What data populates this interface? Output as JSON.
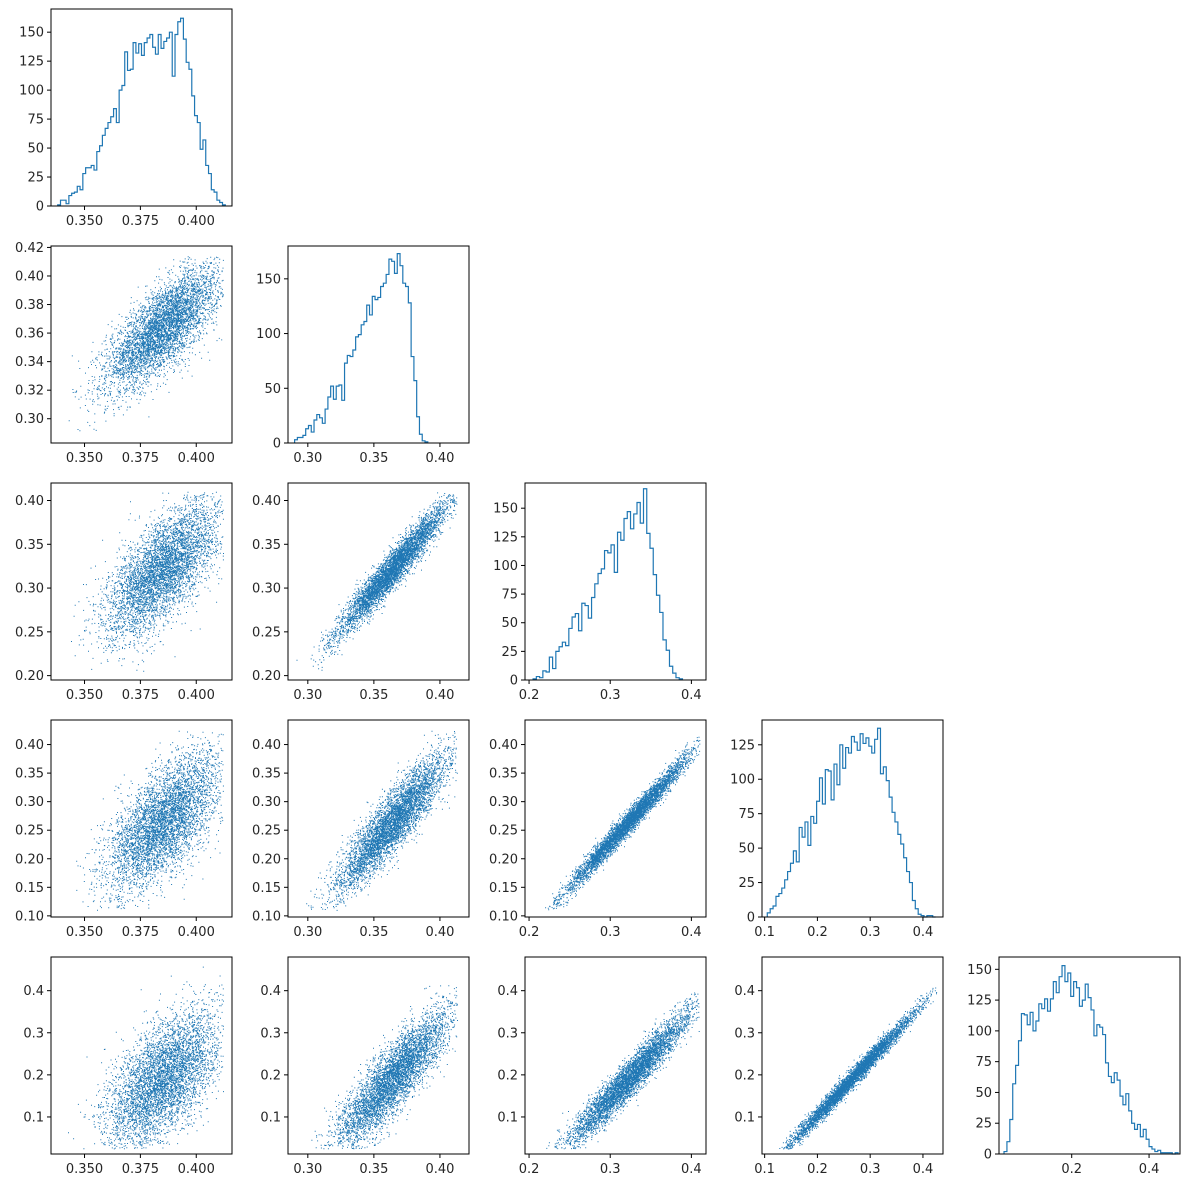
{
  "style": {
    "series_color": "#1f77b4",
    "axis_color": "#000000"
  },
  "chart_data": [
    {
      "type": "histogram",
      "panel": "hist-1",
      "row": 0,
      "col": 0,
      "xlim": [
        0.335,
        0.416
      ],
      "ylim": [
        0,
        170
      ],
      "xticks": [
        0.35,
        0.375,
        0.4
      ],
      "xtick_labels": [
        "0.350",
        "0.375",
        "0.400"
      ],
      "yticks": [
        0,
        25,
        50,
        75,
        100,
        125,
        150
      ],
      "ytick_labels": [
        "0",
        "25",
        "50",
        "75",
        "100",
        "125",
        "150"
      ],
      "bin_start": 0.338,
      "bin_width": 0.00125,
      "counts": [
        1,
        5,
        5,
        2,
        9,
        11,
        12,
        17,
        14,
        28,
        33,
        33,
        35,
        31,
        47,
        52,
        61,
        67,
        72,
        77,
        84,
        72,
        100,
        104,
        133,
        117,
        118,
        141,
        132,
        140,
        130,
        141,
        145,
        148,
        137,
        131,
        148,
        136,
        142,
        145,
        150,
        112,
        148,
        159,
        162,
        144,
        124,
        118,
        95,
        78,
        72,
        49,
        57,
        35,
        28,
        14,
        12,
        5,
        3,
        1
      ],
      "xlabel": "",
      "ylabel": ""
    },
    {
      "type": "scatter",
      "panel": "scatter-2-1",
      "row": 1,
      "col": 0,
      "xlim": [
        0.335,
        0.416
      ],
      "ylim": [
        0.283,
        0.421
      ],
      "xticks": [
        0.35,
        0.375,
        0.4
      ],
      "xtick_labels": [
        "0.350",
        "0.375",
        "0.400"
      ],
      "yticks": [
        0.3,
        0.32,
        0.34,
        0.36,
        0.38,
        0.4,
        0.42
      ],
      "ytick_labels": [
        "0.30",
        "0.32",
        "0.34",
        "0.36",
        "0.38",
        "0.40",
        "0.42"
      ],
      "x_mean": 0.385,
      "x_sd": 0.0126,
      "x_min": 0.338,
      "x_max": 0.412,
      "y_mean": 0.364,
      "y_sd": 0.021,
      "y_min": 0.288,
      "y_max": 0.414,
      "corr": 0.74,
      "n": 5000,
      "xlabel": "",
      "ylabel": ""
    },
    {
      "type": "histogram",
      "panel": "hist-2",
      "row": 1,
      "col": 1,
      "xlim": [
        0.285,
        0.422
      ],
      "ylim": [
        0,
        180
      ],
      "xticks": [
        0.3,
        0.35,
        0.4
      ],
      "xtick_labels": [
        "0.30",
        "0.35",
        "0.40"
      ],
      "yticks": [
        0,
        50,
        100,
        150
      ],
      "ytick_labels": [
        "0",
        "50",
        "100",
        "150"
      ],
      "bin_start": 0.29,
      "bin_width": 0.0021,
      "counts": [
        3,
        5,
        5,
        7,
        13,
        16,
        10,
        21,
        26,
        23,
        18,
        31,
        42,
        52,
        40,
        52,
        53,
        39,
        73,
        80,
        79,
        85,
        97,
        99,
        108,
        111,
        126,
        117,
        134,
        131,
        133,
        143,
        146,
        154,
        168,
        166,
        155,
        173,
        162,
        146,
        143,
        128,
        79,
        57,
        24,
        8,
        2,
        1
      ],
      "xlabel": "",
      "ylabel": ""
    },
    {
      "type": "scatter",
      "panel": "scatter-3-1",
      "row": 2,
      "col": 0,
      "xlim": [
        0.335,
        0.416
      ],
      "ylim": [
        0.195,
        0.42
      ],
      "xticks": [
        0.35,
        0.375,
        0.4
      ],
      "xtick_labels": [
        "0.350",
        "0.375",
        "0.400"
      ],
      "yticks": [
        0.2,
        0.25,
        0.3,
        0.35,
        0.4
      ],
      "ytick_labels": [
        "0.20",
        "0.25",
        "0.30",
        "0.35",
        "0.40"
      ],
      "x_mean": 0.385,
      "x_sd": 0.0126,
      "x_min": 0.338,
      "x_max": 0.412,
      "y_mean": 0.322,
      "y_sd": 0.038,
      "y_min": 0.205,
      "y_max": 0.41,
      "corr": 0.68,
      "n": 5000,
      "xlabel": "",
      "ylabel": ""
    },
    {
      "type": "scatter",
      "panel": "scatter-3-2",
      "row": 2,
      "col": 1,
      "xlim": [
        0.285,
        0.422
      ],
      "ylim": [
        0.195,
        0.42
      ],
      "xticks": [
        0.3,
        0.35,
        0.4
      ],
      "xtick_labels": [
        "0.30",
        "0.35",
        "0.40"
      ],
      "yticks": [
        0.2,
        0.25,
        0.3,
        0.35,
        0.4
      ],
      "ytick_labels": [
        "0.20",
        "0.25",
        "0.30",
        "0.35",
        "0.40"
      ],
      "x_mean": 0.364,
      "x_sd": 0.021,
      "x_min": 0.29,
      "x_max": 0.413,
      "y_mean": 0.322,
      "y_sd": 0.038,
      "y_min": 0.205,
      "y_max": 0.41,
      "corr": 0.96,
      "n": 5000,
      "xlabel": "",
      "ylabel": ""
    },
    {
      "type": "histogram",
      "panel": "hist-3",
      "row": 2,
      "col": 2,
      "xlim": [
        0.195,
        0.418
      ],
      "ylim": [
        0,
        172
      ],
      "xticks": [
        0.2,
        0.3,
        0.4
      ],
      "xtick_labels": [
        "0.2",
        "0.3",
        "0.4"
      ],
      "yticks": [
        0,
        25,
        50,
        75,
        100,
        125,
        150
      ],
      "ytick_labels": [
        "0",
        "25",
        "50",
        "75",
        "100",
        "125",
        "150"
      ],
      "bin_start": 0.205,
      "bin_width": 0.004,
      "counts": [
        1,
        3,
        2,
        8,
        7,
        20,
        10,
        25,
        29,
        33,
        30,
        45,
        55,
        58,
        43,
        67,
        65,
        54,
        72,
        84,
        93,
        97,
        113,
        111,
        118,
        94,
        129,
        122,
        141,
        147,
        132,
        145,
        155,
        137,
        167,
        128,
        115,
        92,
        74,
        59,
        35,
        26,
        12,
        6,
        2,
        1
      ],
      "xlabel": "",
      "ylabel": ""
    },
    {
      "type": "scatter",
      "panel": "scatter-4-1",
      "row": 3,
      "col": 0,
      "xlim": [
        0.335,
        0.416
      ],
      "ylim": [
        0.098,
        0.443
      ],
      "xticks": [
        0.35,
        0.375,
        0.4
      ],
      "xtick_labels": [
        "0.350",
        "0.375",
        "0.400"
      ],
      "yticks": [
        0.1,
        0.15,
        0.2,
        0.25,
        0.3,
        0.35,
        0.4
      ],
      "ytick_labels": [
        "0.10",
        "0.15",
        "0.20",
        "0.25",
        "0.30",
        "0.35",
        "0.40"
      ],
      "x_mean": 0.385,
      "x_sd": 0.0126,
      "x_min": 0.338,
      "x_max": 0.412,
      "y_mean": 0.264,
      "y_sd": 0.06,
      "y_min": 0.11,
      "y_max": 0.425,
      "corr": 0.64,
      "n": 5000,
      "xlabel": "",
      "ylabel": ""
    },
    {
      "type": "scatter",
      "panel": "scatter-4-2",
      "row": 3,
      "col": 1,
      "xlim": [
        0.285,
        0.422
      ],
      "ylim": [
        0.098,
        0.443
      ],
      "xticks": [
        0.3,
        0.35,
        0.4
      ],
      "xtick_labels": [
        "0.30",
        "0.35",
        "0.40"
      ],
      "yticks": [
        0.1,
        0.15,
        0.2,
        0.25,
        0.3,
        0.35,
        0.4
      ],
      "ytick_labels": [
        "0.10",
        "0.15",
        "0.20",
        "0.25",
        "0.30",
        "0.35",
        "0.40"
      ],
      "x_mean": 0.364,
      "x_sd": 0.021,
      "x_min": 0.29,
      "x_max": 0.413,
      "y_mean": 0.264,
      "y_sd": 0.06,
      "y_min": 0.11,
      "y_max": 0.425,
      "corr": 0.9,
      "n": 5000,
      "xlabel": "",
      "ylabel": ""
    },
    {
      "type": "scatter",
      "panel": "scatter-4-3",
      "row": 3,
      "col": 2,
      "xlim": [
        0.195,
        0.418
      ],
      "ylim": [
        0.098,
        0.443
      ],
      "xticks": [
        0.2,
        0.3,
        0.4
      ],
      "xtick_labels": [
        "0.2",
        "0.3",
        "0.4"
      ],
      "yticks": [
        0.1,
        0.15,
        0.2,
        0.25,
        0.3,
        0.35,
        0.4
      ],
      "ytick_labels": [
        "0.10",
        "0.15",
        "0.20",
        "0.25",
        "0.30",
        "0.35",
        "0.40"
      ],
      "x_mean": 0.322,
      "x_sd": 0.038,
      "x_min": 0.205,
      "x_max": 0.41,
      "y_mean": 0.264,
      "y_sd": 0.06,
      "y_min": 0.11,
      "y_max": 0.425,
      "corr": 0.985,
      "n": 5000,
      "xlabel": "",
      "ylabel": ""
    },
    {
      "type": "histogram",
      "panel": "hist-4",
      "row": 3,
      "col": 3,
      "xlim": [
        0.095,
        0.438
      ],
      "ylim": [
        0,
        143
      ],
      "xticks": [
        0.1,
        0.2,
        0.3,
        0.4
      ],
      "xtick_labels": [
        "0.1",
        "0.2",
        "0.3",
        "0.4"
      ],
      "yticks": [
        0,
        25,
        50,
        75,
        100,
        125
      ],
      "ytick_labels": [
        "0",
        "25",
        "50",
        "75",
        "100",
        "125"
      ],
      "bin_start": 0.105,
      "bin_width": 0.0055,
      "counts": [
        3,
        6,
        8,
        15,
        17,
        21,
        27,
        33,
        39,
        48,
        40,
        65,
        58,
        69,
        52,
        73,
        68,
        84,
        101,
        82,
        107,
        106,
        85,
        111,
        96,
        125,
        108,
        123,
        119,
        131,
        127,
        121,
        133,
        126,
        130,
        124,
        119,
        129,
        137,
        104,
        109,
        99,
        87,
        76,
        69,
        60,
        53,
        43,
        33,
        25,
        12,
        6,
        2,
        1,
        0,
        1,
        1,
        0
      ],
      "xlabel": "",
      "ylabel": ""
    },
    {
      "type": "scatter",
      "panel": "scatter-5-1",
      "row": 4,
      "col": 0,
      "xlim": [
        0.335,
        0.416
      ],
      "ylim": [
        0.012,
        0.48
      ],
      "xticks": [
        0.35,
        0.375,
        0.4
      ],
      "xtick_labels": [
        "0.350",
        "0.375",
        "0.400"
      ],
      "yticks": [
        0.1,
        0.2,
        0.3,
        0.4
      ],
      "ytick_labels": [
        "0.1",
        "0.2",
        "0.3",
        "0.4"
      ],
      "x_mean": 0.385,
      "x_sd": 0.0126,
      "x_min": 0.338,
      "x_max": 0.412,
      "y_mean": 0.19,
      "y_sd": 0.08,
      "y_min": 0.025,
      "y_max": 0.465,
      "corr": 0.6,
      "n": 5000,
      "xlabel": "",
      "ylabel": ""
    },
    {
      "type": "scatter",
      "panel": "scatter-5-2",
      "row": 4,
      "col": 1,
      "xlim": [
        0.285,
        0.422
      ],
      "ylim": [
        0.012,
        0.48
      ],
      "xticks": [
        0.3,
        0.35,
        0.4
      ],
      "xtick_labels": [
        "0.30",
        "0.35",
        "0.40"
      ],
      "yticks": [
        0.1,
        0.2,
        0.3,
        0.4
      ],
      "ytick_labels": [
        "0.1",
        "0.2",
        "0.3",
        "0.4"
      ],
      "x_mean": 0.364,
      "x_sd": 0.021,
      "x_min": 0.29,
      "x_max": 0.413,
      "y_mean": 0.19,
      "y_sd": 0.08,
      "y_min": 0.025,
      "y_max": 0.465,
      "corr": 0.86,
      "n": 5000,
      "xlabel": "",
      "ylabel": ""
    },
    {
      "type": "scatter",
      "panel": "scatter-5-3",
      "row": 4,
      "col": 2,
      "xlim": [
        0.195,
        0.418
      ],
      "ylim": [
        0.012,
        0.48
      ],
      "xticks": [
        0.2,
        0.3,
        0.4
      ],
      "xtick_labels": [
        "0.2",
        "0.3",
        "0.4"
      ],
      "yticks": [
        0.1,
        0.2,
        0.3,
        0.4
      ],
      "ytick_labels": [
        "0.1",
        "0.2",
        "0.3",
        "0.4"
      ],
      "x_mean": 0.322,
      "x_sd": 0.038,
      "x_min": 0.205,
      "x_max": 0.41,
      "y_mean": 0.19,
      "y_sd": 0.08,
      "y_min": 0.025,
      "y_max": 0.465,
      "corr": 0.96,
      "n": 5000,
      "xlabel": "",
      "ylabel": ""
    },
    {
      "type": "scatter",
      "panel": "scatter-5-4",
      "row": 4,
      "col": 3,
      "xlim": [
        0.095,
        0.438
      ],
      "ylim": [
        0.012,
        0.48
      ],
      "xticks": [
        0.1,
        0.2,
        0.3,
        0.4
      ],
      "xtick_labels": [
        "0.1",
        "0.2",
        "0.3",
        "0.4"
      ],
      "yticks": [
        0.1,
        0.2,
        0.3,
        0.4
      ],
      "ytick_labels": [
        "0.1",
        "0.2",
        "0.3",
        "0.4"
      ],
      "x_mean": 0.264,
      "x_sd": 0.06,
      "x_min": 0.11,
      "x_max": 0.425,
      "y_mean": 0.19,
      "y_sd": 0.08,
      "y_min": 0.025,
      "y_max": 0.465,
      "corr": 0.99,
      "n": 5000,
      "xlabel": "",
      "ylabel": ""
    },
    {
      "type": "histogram",
      "panel": "hist-5",
      "row": 4,
      "col": 4,
      "xlim": [
        0.012,
        0.48
      ],
      "ylim": [
        0,
        160
      ],
      "xticks": [
        0.2,
        0.4
      ],
      "xtick_labels": [
        "0.2",
        "0.4"
      ],
      "yticks": [
        0,
        25,
        50,
        75,
        100,
        125,
        150
      ],
      "ytick_labels": [
        "0",
        "25",
        "50",
        "75",
        "100",
        "125",
        "150"
      ],
      "bin_start": 0.025,
      "bin_width": 0.0075,
      "counts": [
        2,
        10,
        28,
        57,
        72,
        92,
        114,
        113,
        105,
        115,
        100,
        108,
        122,
        118,
        126,
        116,
        126,
        140,
        131,
        144,
        153,
        140,
        147,
        128,
        140,
        135,
        120,
        125,
        138,
        127,
        117,
        96,
        105,
        103,
        97,
        74,
        63,
        58,
        66,
        60,
        47,
        40,
        49,
        35,
        25,
        20,
        24,
        14,
        20,
        12,
        6,
        4,
        2,
        3,
        1,
        1,
        1,
        1,
        0,
        1
      ],
      "xlabel": "",
      "ylabel": ""
    }
  ]
}
